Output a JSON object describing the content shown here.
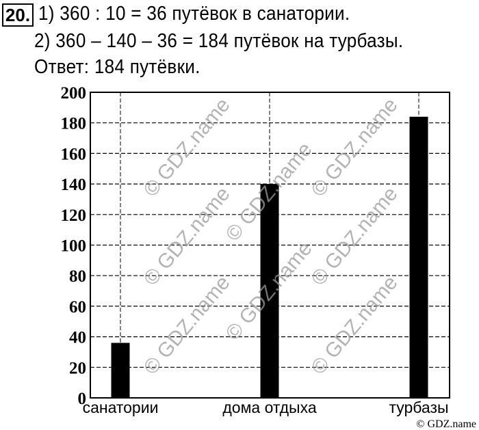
{
  "problem": {
    "number": "20.",
    "lines": [
      "1) 360 : 10 = 36 путёвок в санатории.",
      "2) 360 – 140 – 36 = 184 путёвок на турбазы.",
      "Ответ: 184 путёвки."
    ]
  },
  "chart_data": {
    "type": "bar",
    "categories": [
      "санатории",
      "дома отдыха",
      "турбазы"
    ],
    "values": [
      36,
      140,
      184
    ],
    "ylim": [
      0,
      200
    ],
    "yticks": [
      0,
      20,
      40,
      60,
      80,
      100,
      120,
      140,
      160,
      180,
      200
    ],
    "grid": "dashed horizontal at each tick, dashed vertical through each bar",
    "bar_color": "#000000"
  },
  "watermark": "© GDZ.name",
  "credit": "© GDZ.name"
}
